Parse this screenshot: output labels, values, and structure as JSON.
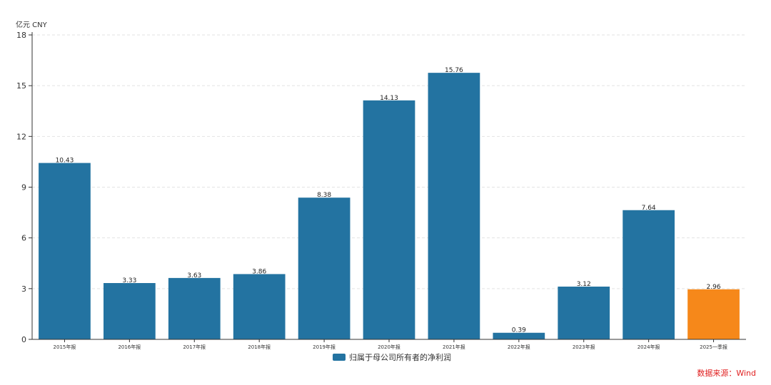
{
  "chart_data": {
    "type": "bar",
    "unit_label": "亿元  CNY",
    "categories": [
      "2015年报",
      "2016年报",
      "2017年报",
      "2018年报",
      "2019年报",
      "2020年报",
      "2021年报",
      "2022年报",
      "2023年报",
      "2024年报",
      "2025一季报"
    ],
    "series": [
      {
        "name": "归属于母公司所有者的净利润",
        "values": [
          10.43,
          3.33,
          3.63,
          3.86,
          8.38,
          14.13,
          15.76,
          0.39,
          3.12,
          7.64,
          2.96
        ]
      }
    ],
    "value_labels": [
      "10.43",
      "3.33",
      "3.63",
      "3.86",
      "8.38",
      "14.13",
      "15.76",
      "0.39",
      "3.12",
      "7.64",
      "2.96"
    ],
    "ylim": [
      0,
      18
    ],
    "yticks": [
      0,
      3,
      6,
      9,
      12,
      15,
      18
    ],
    "grid": true,
    "legend_position": "bottom-center",
    "colors": {
      "bar": "#2373a1",
      "highlight": "#f6881a",
      "source": "#e02020"
    },
    "highlight_index": 10,
    "source": "数据来源：Wind"
  }
}
